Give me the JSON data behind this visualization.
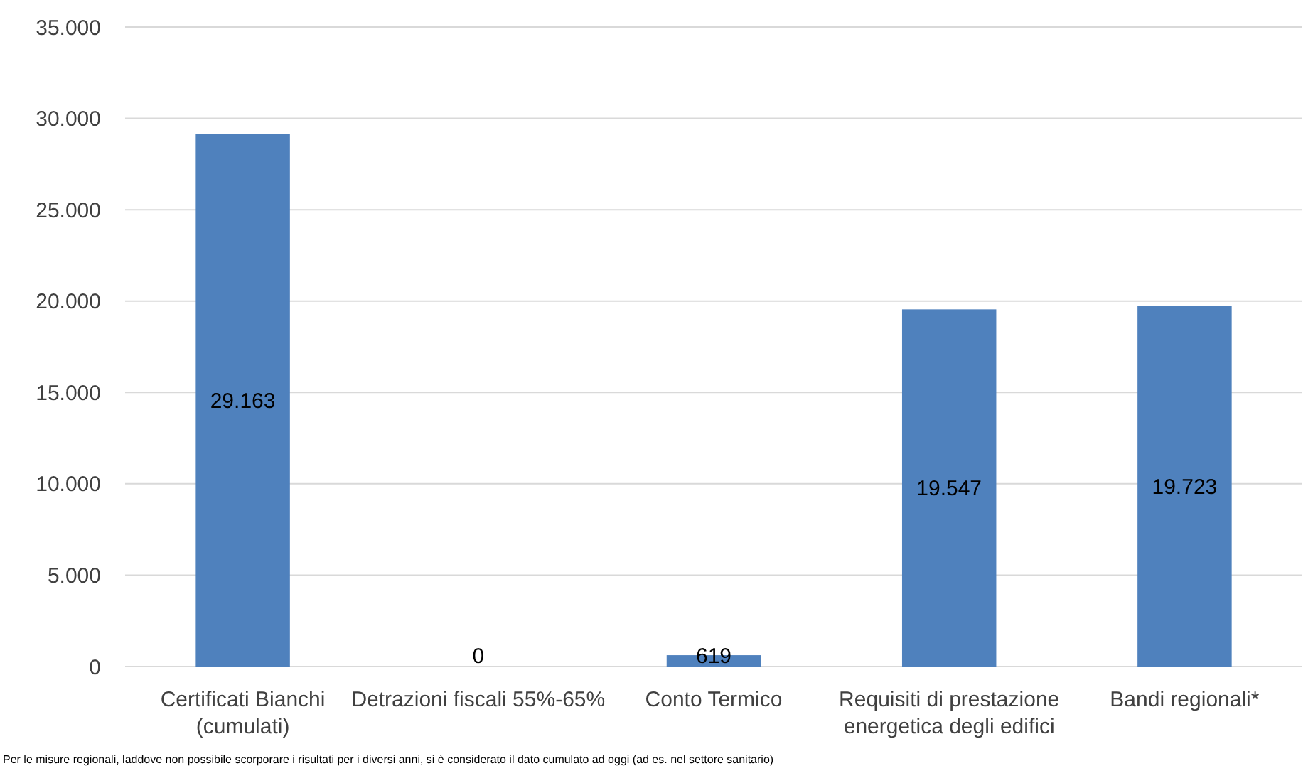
{
  "chart_data": {
    "type": "bar",
    "categories": [
      "Certificati Bianchi (cumulati)",
      "Detrazioni fiscali 55%-65%",
      "Conto Termico",
      "Requisiti di prestazione energetica degli edifici",
      "Bandi regionali*"
    ],
    "values": [
      29163,
      0,
      619,
      19547,
      19723
    ],
    "value_labels": [
      "29.163",
      "0",
      "619",
      "19.547",
      "19.723"
    ],
    "color": "#4f81bd",
    "ylim": [
      0,
      35000
    ],
    "yticks": [
      {
        "value": 0,
        "label": "0"
      },
      {
        "value": 5000,
        "label": "5.000"
      },
      {
        "value": 10000,
        "label": "10.000"
      },
      {
        "value": 15000,
        "label": "15.000"
      },
      {
        "value": 20000,
        "label": "20.000"
      },
      {
        "value": 25000,
        "label": "25.000"
      },
      {
        "value": 30000,
        "label": "30.000"
      },
      {
        "value": 35000,
        "label": "35.000"
      }
    ],
    "grid": "y",
    "annotations": [
      "Per le misure regionali, laddove non possibile scorporare i risultati per i diversi anni, si è considerato il dato cumulato ad oggi (ad es. nel settore sanitario)"
    ]
  }
}
